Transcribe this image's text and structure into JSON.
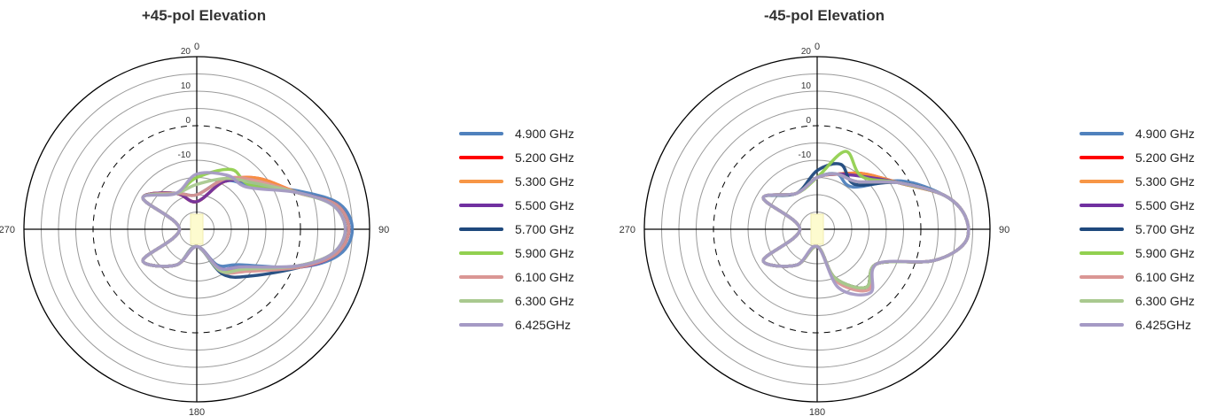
{
  "chart_data": [
    {
      "type": "polar-line",
      "title": "+45-pol Elevation",
      "angle_labels": [
        "0",
        "90",
        "180",
        "270"
      ],
      "r_tick_labels": [
        "20",
        "10",
        "0",
        "-10"
      ],
      "rlim": [
        -30,
        20
      ],
      "grid": true,
      "legend_position": "right",
      "series": [
        {
          "name": "4.900 GHz",
          "color": "#4f81bd",
          "angles_deg": [
            0,
            30,
            50,
            70,
            80,
            90,
            100,
            110,
            130,
            150,
            180,
            210,
            240,
            270,
            300,
            330
          ],
          "values": [
            -22,
            -14,
            -10,
            2,
            12,
            15,
            12,
            2,
            -14,
            -18,
            -25,
            -18,
            -12,
            -25,
            -12,
            -18
          ]
        },
        {
          "name": "5.200 GHz",
          "color": "#ff0000",
          "angles_deg": [
            0,
            30,
            50,
            70,
            80,
            90,
            100,
            110,
            130,
            150,
            180,
            210,
            240,
            270,
            300,
            330
          ],
          "values": [
            -22,
            -14,
            -7,
            1,
            11,
            14,
            11,
            2,
            -12,
            -17,
            -25,
            -18,
            -12,
            -25,
            -12,
            -18
          ]
        },
        {
          "name": "5.300 GHz",
          "color": "#f79646",
          "angles_deg": [
            0,
            30,
            50,
            70,
            80,
            90,
            100,
            110,
            130,
            150,
            180,
            210,
            240,
            270,
            300,
            330
          ],
          "values": [
            -22,
            -14,
            -7,
            1,
            11,
            14,
            11,
            2,
            -12,
            -17,
            -25,
            -18,
            -12,
            -25,
            -12,
            -18
          ]
        },
        {
          "name": "5.500 GHz",
          "color": "#7030a0",
          "angles_deg": [
            0,
            30,
            50,
            70,
            80,
            90,
            100,
            110,
            130,
            150,
            180,
            210,
            240,
            270,
            300,
            330
          ],
          "values": [
            -22,
            -14,
            -9,
            1,
            11,
            14,
            11,
            2,
            -13,
            -17,
            -25,
            -18,
            -12,
            -25,
            -12,
            -18
          ]
        },
        {
          "name": "5.700 GHz",
          "color": "#1f497d",
          "angles_deg": [
            0,
            30,
            50,
            70,
            80,
            90,
            100,
            110,
            130,
            150,
            180,
            210,
            240,
            270,
            300,
            330
          ],
          "values": [
            -20,
            -13,
            -9,
            1,
            11,
            14,
            11,
            2,
            -9,
            -15,
            -25,
            -18,
            -12,
            -25,
            -12,
            -18
          ]
        },
        {
          "name": "5.900 GHz",
          "color": "#92d050",
          "angles_deg": [
            0,
            30,
            50,
            70,
            80,
            90,
            100,
            110,
            130,
            150,
            180,
            210,
            240,
            270,
            300,
            330
          ],
          "values": [
            -15,
            -10,
            -10,
            1,
            10,
            13,
            10,
            1,
            -12,
            -16,
            -25,
            -18,
            -12,
            -25,
            -12,
            -18
          ]
        },
        {
          "name": "6.100 GHz",
          "color": "#da9694",
          "angles_deg": [
            0,
            30,
            50,
            70,
            80,
            90,
            100,
            110,
            130,
            150,
            180,
            210,
            240,
            270,
            300,
            330
          ],
          "values": [
            -20,
            -13,
            -8,
            1,
            11,
            14,
            11,
            2,
            -11,
            -16,
            -25,
            -18,
            -12,
            -25,
            -12,
            -18
          ]
        },
        {
          "name": "6.300 GHz",
          "color": "#a9c98f",
          "angles_deg": [
            0,
            30,
            50,
            70,
            80,
            90,
            100,
            110,
            130,
            150,
            180,
            210,
            240,
            270,
            300,
            330
          ],
          "values": [
            -17,
            -13,
            -9,
            1,
            10,
            13,
            10,
            1,
            -12,
            -16,
            -25,
            -18,
            -12,
            -25,
            -12,
            -18
          ]
        },
        {
          "name": "6.425GHz",
          "color": "#a59ac5",
          "angles_deg": [
            0,
            30,
            50,
            70,
            80,
            90,
            100,
            110,
            130,
            150,
            180,
            210,
            240,
            270,
            300,
            330
          ],
          "values": [
            -14,
            -12,
            -11,
            1,
            10,
            13,
            10,
            1,
            -13,
            -17,
            -25,
            -18,
            -12,
            -25,
            -12,
            -18
          ]
        }
      ]
    },
    {
      "type": "polar-line",
      "title": "-45-pol Elevation",
      "angle_labels": [
        "0",
        "90",
        "180",
        "270"
      ],
      "r_tick_labels": [
        "20",
        "10",
        "0",
        "-10"
      ],
      "rlim": [
        -30,
        20
      ],
      "grid": true,
      "legend_position": "right",
      "series": [
        {
          "name": "4.900 GHz",
          "color": "#4f81bd",
          "angles_deg": [
            0,
            20,
            40,
            60,
            75,
            85,
            95,
            105,
            120,
            140,
            160,
            180,
            210,
            240,
            270,
            300,
            330
          ],
          "values": [
            -15,
            -13,
            -14,
            -2,
            8,
            13,
            13,
            5,
            -10,
            -8,
            -15,
            -25,
            -18,
            -12,
            -25,
            -12,
            -18
          ]
        },
        {
          "name": "5.200 GHz",
          "color": "#ff0000",
          "angles_deg": [
            0,
            20,
            40,
            60,
            75,
            85,
            95,
            105,
            120,
            140,
            160,
            180,
            210,
            240,
            270,
            300,
            330
          ],
          "values": [
            -15,
            -13,
            -9,
            -3,
            8,
            13,
            13,
            5,
            -10,
            -8,
            -15,
            -25,
            -18,
            -12,
            -25,
            -12,
            -18
          ]
        },
        {
          "name": "5.300 GHz",
          "color": "#f79646",
          "angles_deg": [
            0,
            20,
            40,
            60,
            75,
            85,
            95,
            105,
            120,
            140,
            160,
            180,
            210,
            240,
            270,
            300,
            330
          ],
          "values": [
            -15,
            -13,
            -9,
            -3,
            8,
            13,
            13,
            5,
            -10,
            -8,
            -15,
            -25,
            -18,
            -12,
            -25,
            -12,
            -18
          ]
        },
        {
          "name": "5.500 GHz",
          "color": "#7030a0",
          "angles_deg": [
            0,
            20,
            40,
            60,
            75,
            85,
            95,
            105,
            120,
            140,
            160,
            180,
            210,
            240,
            270,
            300,
            330
          ],
          "values": [
            -15,
            -13,
            -10,
            -3,
            8,
            13,
            13,
            5,
            -10,
            -8,
            -15,
            -25,
            -18,
            -12,
            -25,
            -12,
            -18
          ]
        },
        {
          "name": "5.700 GHz",
          "color": "#1f497d",
          "angles_deg": [
            0,
            20,
            40,
            60,
            75,
            85,
            95,
            105,
            120,
            140,
            160,
            180,
            210,
            240,
            270,
            300,
            330
          ],
          "values": [
            -13,
            -10,
            -13,
            -3,
            8,
            13,
            13,
            5,
            -10,
            -8,
            -15,
            -25,
            -18,
            -12,
            -25,
            -12,
            -18
          ]
        },
        {
          "name": "5.900 GHz",
          "color": "#92d050",
          "angles_deg": [
            0,
            20,
            40,
            60,
            75,
            85,
            95,
            105,
            120,
            140,
            160,
            180,
            210,
            240,
            270,
            300,
            330
          ],
          "values": [
            -15,
            -6,
            -10,
            -3,
            8,
            13,
            13,
            5,
            -10,
            -8,
            -15,
            -25,
            -18,
            -12,
            -25,
            -12,
            -18
          ]
        },
        {
          "name": "6.100 GHz",
          "color": "#da9694",
          "angles_deg": [
            0,
            20,
            40,
            60,
            75,
            85,
            95,
            105,
            120,
            140,
            160,
            180,
            210,
            240,
            270,
            300,
            330
          ],
          "values": [
            -15,
            -13,
            -12,
            -3,
            8,
            13,
            13,
            5,
            -10,
            -7,
            -14,
            -25,
            -18,
            -12,
            -25,
            -12,
            -18
          ]
        },
        {
          "name": "6.300 GHz",
          "color": "#a9c98f",
          "angles_deg": [
            0,
            20,
            40,
            60,
            75,
            85,
            95,
            105,
            120,
            140,
            160,
            180,
            210,
            240,
            270,
            300,
            330
          ],
          "values": [
            -15,
            -13,
            -12,
            -3,
            8,
            13,
            13,
            5,
            -10,
            -8,
            -15,
            -25,
            -18,
            -12,
            -25,
            -12,
            -18
          ]
        },
        {
          "name": "6.425GHz",
          "color": "#a59ac5",
          "angles_deg": [
            0,
            20,
            40,
            60,
            75,
            85,
            95,
            105,
            120,
            140,
            160,
            180,
            210,
            240,
            270,
            300,
            330
          ],
          "values": [
            -15,
            -13,
            -12,
            -3,
            8,
            13,
            13,
            5,
            -10,
            -6,
            -12,
            -25,
            -18,
            -12,
            -25,
            -12,
            -18
          ]
        }
      ]
    }
  ]
}
